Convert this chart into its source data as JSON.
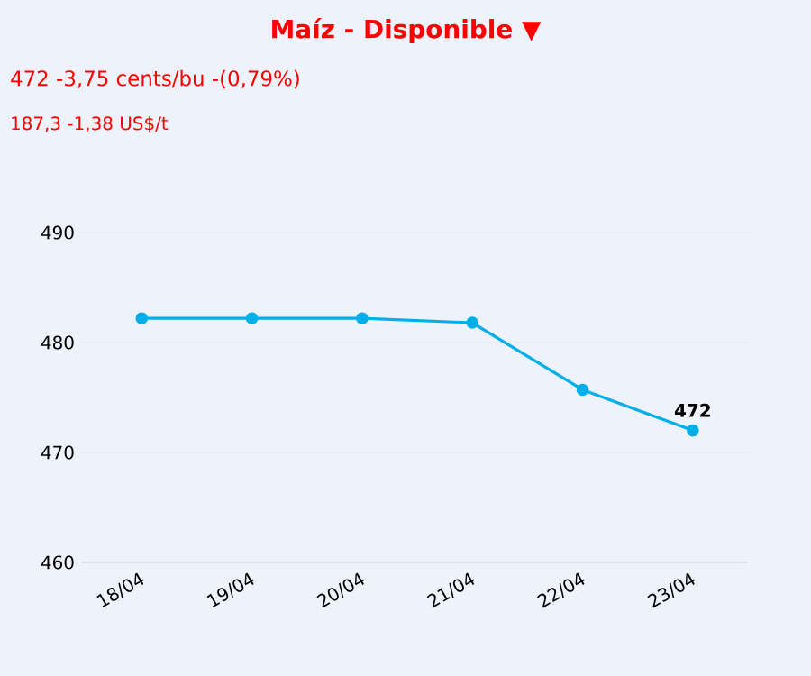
{
  "chart_data": {
    "type": "line",
    "title": "Maíz - Disponible ▼",
    "subtitle": "472 -3,75 cents/bu -(0,79%)",
    "annotations": [
      "187,3 -1,38 US$/t"
    ],
    "categories": [
      "18/04",
      "19/04",
      "20/04",
      "21/04",
      "22/04",
      "23/04"
    ],
    "series": [
      {
        "color": "#00aee8",
        "values": [
          482.2,
          482.2,
          482.2,
          481.8,
          475.7,
          472
        ],
        "value_labels": [
          null,
          null,
          null,
          null,
          null,
          "472"
        ]
      }
    ],
    "ylim": [
      460,
      490
    ],
    "yticks": [
      460,
      470,
      480,
      490
    ],
    "grid": "y",
    "marker": "circle",
    "line_style": "solid"
  }
}
